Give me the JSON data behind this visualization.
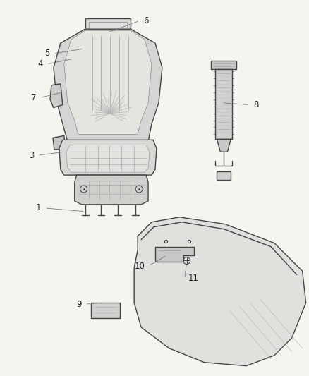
{
  "bg_color": "#f5f5f0",
  "line_color": "#444444",
  "label_color": "#222222",
  "label_fontsize": 8.5,
  "seat_fill": "#e8e8e8",
  "seat_edge": "#444444"
}
